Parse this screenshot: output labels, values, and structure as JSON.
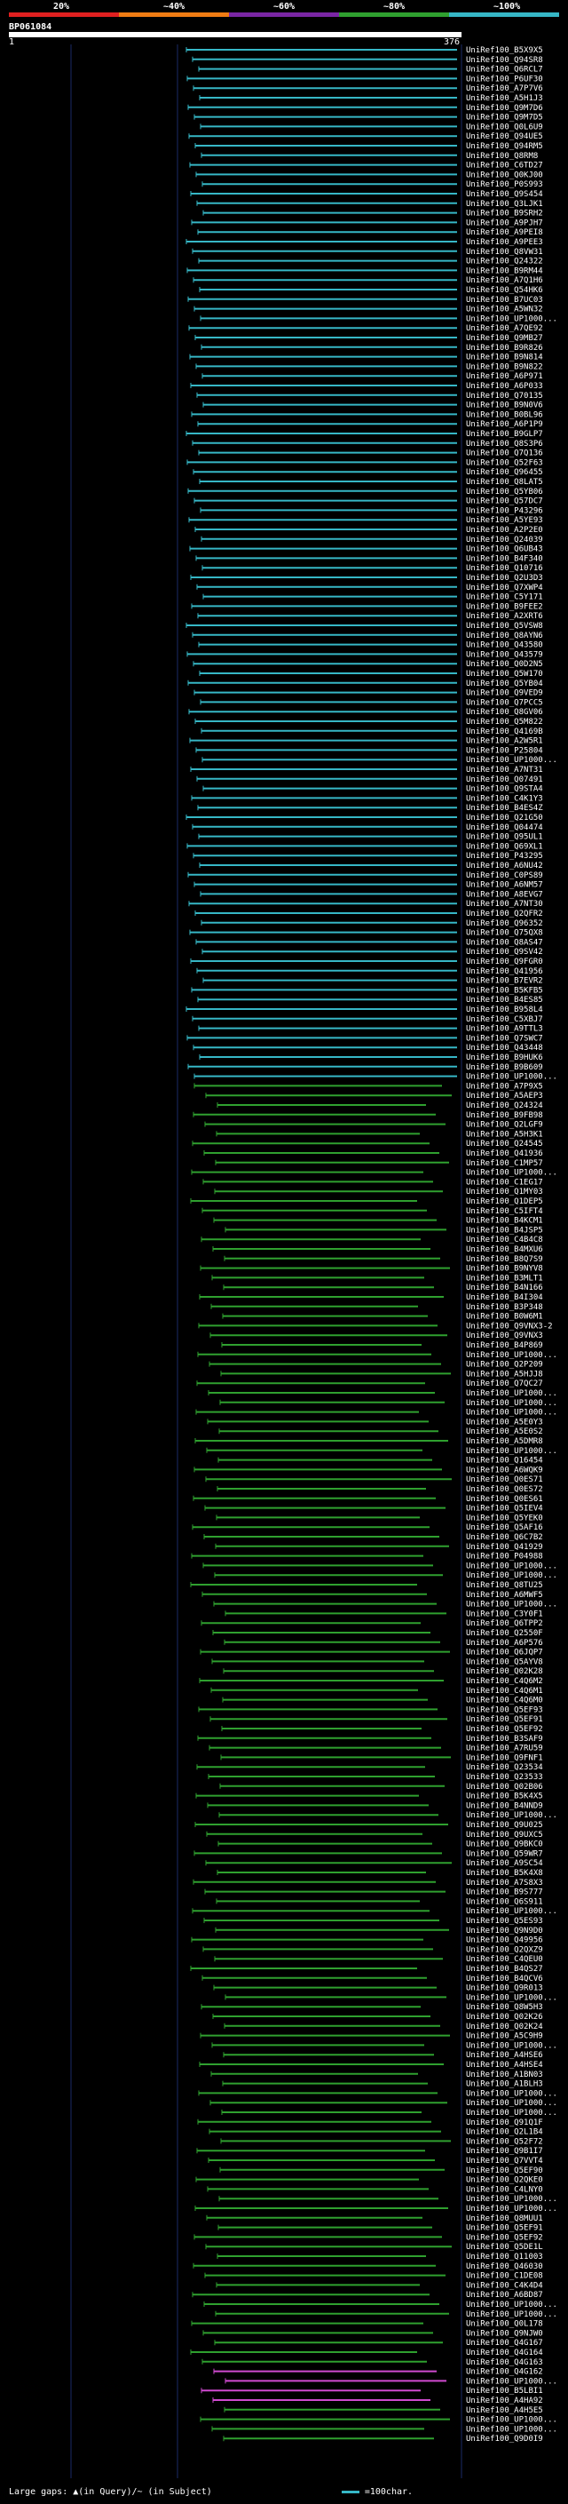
{
  "legend": {
    "labels": [
      "20%",
      "~40%",
      "~60%",
      "~80%",
      "~100%"
    ],
    "colors": [
      "#e02020",
      "#f07c13",
      "#7a26a4",
      "#2fa02f",
      "#36b7c6"
    ]
  },
  "query": {
    "name": "BP061084",
    "start_label": "1",
    "end_label": "376"
  },
  "footer": {
    "text": "Large gaps: ▲(in Query)/~ (in Subject)",
    "scale_label": "=100char."
  },
  "hits": [
    "UniRef100_B5X9X5",
    "UniRef100_Q94SR8",
    "UniRef100_Q6RCL7",
    "UniRef100_P6UF30",
    "UniRef100_A7P7V6",
    "UniRef100_A5H1J3",
    "UniRef100_Q9M7D6",
    "UniRef100_Q9M7D5",
    "UniRef100_Q0L6U9",
    "UniRef100_Q94UE5",
    "UniRef100_Q94RM5",
    "UniRef100_Q8RM8",
    "UniRef100_C6TD27",
    "UniRef100_Q0KJ00",
    "UniRef100_P0S993",
    "UniRef100_Q9S454",
    "UniRef100_Q3LJK1",
    "UniRef100_B9SRH2",
    "UniRef100_A9PJH7",
    "UniRef100_A9PEI8",
    "UniRef100_A9PEE3",
    "UniRef100_Q8VW31",
    "UniRef100_Q24322",
    "UniRef100_B9RM44",
    "UniRef100_A7Q1H6",
    "UniRef100_Q54HK6",
    "UniRef100_B7UC03",
    "UniRef100_A5WN32",
    "UniRef100_UP1000...",
    "UniRef100_A7QE92",
    "UniRef100_Q9MB27",
    "UniRef100_B9R826",
    "UniRef100_B9N814",
    "UniRef100_B9N822",
    "UniRef100_A6P971",
    "UniRef100_A6P033",
    "UniRef100_Q70135",
    "UniRef100_B9N0V6",
    "UniRef100_B0BL96",
    "UniRef100_A6P1P9",
    "UniRef100_B9GLP7",
    "UniRef100_Q8S3P6",
    "UniRef100_Q7Q136",
    "UniRef100_Q52F63",
    "UniRef100_Q96455",
    "UniRef100_Q8LAT5",
    "UniRef100_Q5YB06",
    "UniRef100_Q57DC7",
    "UniRef100_P43296",
    "UniRef100_A5YE93",
    "UniRef100_A2P2E0",
    "UniRef100_Q24039",
    "UniRef100_Q6UB43",
    "UniRef100_B4F340",
    "UniRef100_Q10716",
    "UniRef100_Q2U3D3",
    "UniRef100_Q7XWP4",
    "UniRef100_C5Y171",
    "UniRef100_B9FEE2",
    "UniRef100_A2XRT6",
    "UniRef100_Q5VSW8",
    "UniRef100_Q8AYN6",
    "UniRef100_Q43580",
    "UniRef100_Q43579",
    "UniRef100_Q0D2N5",
    "UniRef100_Q5W170",
    "UniRef100_Q5YB04",
    "UniRef100_Q9VED9",
    "UniRef100_Q7PCC5",
    "UniRef100_Q8GV06",
    "UniRef100_Q5M822",
    "UniRef100_Q4169B",
    "UniRef100_A2W5R1",
    "UniRef100_P25804",
    "UniRef100_UP1000...",
    "UniRef100_A7NT31",
    "UniRef100_Q07491",
    "UniRef100_Q9STA4",
    "UniRef100_C4K1Y3",
    "UniRef100_B4ES4Z",
    "UniRef100_Q21G50",
    "UniRef100_Q04474",
    "UniRef100_Q95UL1",
    "UniRef100_Q69XL1",
    "UniRef100_P43295",
    "UniRef100_A6NU42",
    "UniRef100_C0PS89",
    "UniRef100_A6NM57",
    "UniRef100_A8EVG7",
    "UniRef100_A7NT30",
    "UniRef100_Q2QFR2",
    "UniRef100_Q96352",
    "UniRef100_Q75QX8",
    "UniRef100_Q8AS47",
    "UniRef100_Q9SV42",
    "UniRef100_Q9FGR0",
    "UniRef100_Q41956",
    "UniRef100_B7EVR2",
    "UniRef100_B5KFB5",
    "UniRef100_B4ES85",
    "UniRef100_B958L4",
    "UniRef100_C5XBJ7",
    "UniRef100_A9TTL3",
    "UniRef100_Q7SWC7",
    "UniRef100_Q43448",
    "UniRef100_B9HUK6",
    "UniRef100_B9B609",
    "UniRef100_UP1000...",
    "UniRef100_A7P9X5",
    "UniRef100_A5AEP3",
    "UniRef100_Q24324",
    "UniRef100_B9FB98",
    "UniRef100_Q2LGF9",
    "UniRef100_A5H3K1",
    "UniRef100_Q24545",
    "UniRef100_Q41936",
    "UniRef100_C1MP57",
    "UniRef100_UP1000...",
    "UniRef100_C1EG17",
    "UniRef100_Q1MY03",
    "UniRef100_Q1DEP5",
    "UniRef100_C5IFT4",
    "UniRef100_B4KCM1",
    "UniRef100_B4JSP5",
    "UniRef100_C4B4C8",
    "UniRef100_B4MXU6",
    "UniRef100_B8Q7S9",
    "UniRef100_B9NYV8",
    "UniRef100_B3MLT1",
    "UniRef100_B4N166",
    "UniRef100_B4I304",
    "UniRef100_B3P348",
    "UniRef100_B0W6M1",
    "UniRef100_Q9VNX3-2",
    "UniRef100_Q9VNX3",
    "UniRef100_B4P869",
    "UniRef100_UP1000...",
    "UniRef100_Q2P209",
    "UniRef100_A5HJJ8",
    "UniRef100_Q7QC27",
    "UniRef100_UP1000...",
    "UniRef100_UP1000...",
    "UniRef100_UP1000...",
    "UniRef100_A5E0Y3",
    "UniRef100_A5E0S2",
    "UniRef100_A5DMR8",
    "UniRef100_UP1000...",
    "UniRef100_Q16454",
    "UniRef100_A6WQK9",
    "UniRef100_Q0ES71",
    "UniRef100_Q0ES72",
    "UniRef100_Q0ES61",
    "UniRef100_Q5IEV4",
    "UniRef100_Q5YEK0",
    "UniRef100_Q5AF16",
    "UniRef100_Q6C7B2",
    "UniRef100_Q41929",
    "UniRef100_P04988",
    "UniRef100_UP1000...",
    "UniRef100_UP1000...",
    "UniRef100_Q8TU25",
    "UniRef100_A6MWF5",
    "UniRef100_UP1000...",
    "UniRef100_C3Y0F1",
    "UniRef100_Q6TPP2",
    "UniRef100_Q2550F",
    "UniRef100_A6P576",
    "UniRef100_Q6JQP7",
    "UniRef100_Q5AYV8",
    "UniRef100_Q02K28",
    "UniRef100_C4Q6M2",
    "UniRef100_C4Q6M1",
    "UniRef100_C4Q6M0",
    "UniRef100_Q5EF93",
    "UniRef100_Q5EF91",
    "UniRef100_Q5EF92",
    "UniRef100_B3SAF9",
    "UniRef100_A7RU59",
    "UniRef100_Q9FNF1",
    "UniRef100_Q23534",
    "UniRef100_Q23533",
    "UniRef100_Q02B06",
    "UniRef100_B5K4X5",
    "UniRef100_B4NND9",
    "UniRef100_UP1000...",
    "UniRef100_Q9U025",
    "UniRef100_Q9UXC5",
    "UniRef100_Q9BKC0",
    "UniRef100_Q59WR7",
    "UniRef100_A9SC54",
    "UniRef100_B5K4X8",
    "UniRef100_A7S8X3",
    "UniRef100_B9S777",
    "UniRef100_Q6S911",
    "UniRef100_UP1000...",
    "UniRef100_Q5ES93",
    "UniRef100_Q9N9D0",
    "UniRef100_Q49956",
    "UniRef100_Q2QXZ9",
    "UniRef100_C4QEU0",
    "UniRef100_B4QS27",
    "UniRef100_B4QCV6",
    "UniRef100_Q9R013",
    "UniRef100_UP1000...",
    "UniRef100_Q8W5H3",
    "UniRef100_Q02K26",
    "UniRef100_Q02K24",
    "UniRef100_A5C9H9",
    "UniRef100_UP1000...",
    "UniRef100_A4HSE6",
    "UniRef100_A4HSE4",
    "UniRef100_A1BN03",
    "UniRef100_A1BLH3",
    "UniRef100_UP1000...",
    "UniRef100_UP1000...",
    "UniRef100_UP1000...",
    "UniRef100_Q91Q1F",
    "UniRef100_Q2L1B4",
    "UniRef100_Q52F72",
    "UniRef100_Q9B1I7",
    "UniRef100_Q7VVT4",
    "UniRef100_Q5EF90",
    "UniRef100_Q2QKE0",
    "UniRef100_C4LNY0",
    "UniRef100_UP1000...",
    "UniRef100_UP1000...",
    "UniRef100_Q8MUU1",
    "UniRef100_Q5EF91",
    "UniRef100_Q5EF92",
    "UniRef100_Q5DE1L",
    "UniRef100_Q11003",
    "UniRef100_Q46030",
    "UniRef100_C1DE08",
    "UniRef100_C4K4D4",
    "UniRef100_A6BD87",
    "UniRef100_UP1000...",
    "UniRef100_UP1000...",
    "UniRef100_Q0L178",
    "UniRef100_Q9NJW0",
    "UniRef100_Q4G167",
    "UniRef100_Q4G164",
    "UniRef100_Q4G163",
    "UniRef100_Q4G162",
    "UniRef100_UP1000...",
    "UniRef100_B5LBI1",
    "UniRef100_A4HA92",
    "UniRef100_A4H5E5",
    "UniRef100_UP1000...",
    "UniRef100_UP1000...",
    "UniRef100_Q9D0I9"
  ]
}
